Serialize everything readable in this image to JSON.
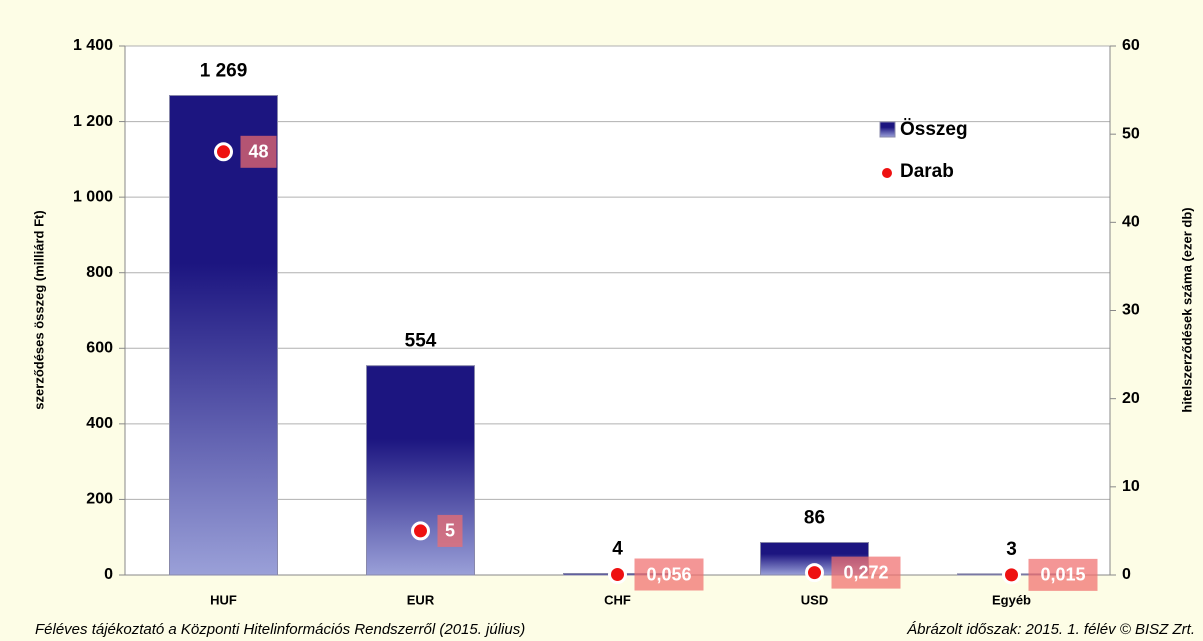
{
  "chart_data": {
    "type": "bar",
    "categories": [
      "HUF",
      "EUR",
      "CHF",
      "USD",
      "Egyéb"
    ],
    "series": [
      {
        "name": "Összeg",
        "color": "#1c1580",
        "values": [
          1269,
          554,
          4,
          86,
          3
        ],
        "value_labels": [
          "1 269",
          "554",
          "4",
          "86",
          "3"
        ]
      },
      {
        "name": "Darab",
        "color": "#ee1111",
        "axis": "y2",
        "type": "scatter",
        "values": [
          48,
          5,
          0.056,
          0.272,
          0.015
        ],
        "value_labels": [
          "48",
          "5",
          "0,056",
          "0,272",
          "0,015"
        ],
        "label_color": "rgba(240,110,110,0.72)"
      }
    ],
    "ylabel": "szerződéses összeg (milliárd Ft)",
    "y2label": "hitelszerződések száma (ezer db)",
    "ylim": [
      0,
      1400
    ],
    "yticks": [
      0,
      200,
      400,
      600,
      800,
      {
        "value": 1000,
        "label": "1 000"
      },
      {
        "value": 1200,
        "label": "1 200"
      },
      {
        "value": 1400,
        "label": "1 400"
      }
    ],
    "y2lim": [
      0,
      60
    ],
    "y2ticks": [
      0,
      10,
      20,
      30,
      40,
      50,
      60
    ],
    "grid": true,
    "legend": "upper right",
    "footer_left": "Féléves tájékoztató a Központi Hitelinformációs Rendszerről (2015. július)",
    "footer_right": "Ábrázolt időszak: 2015. 1. félév © BISZ Zrt."
  }
}
